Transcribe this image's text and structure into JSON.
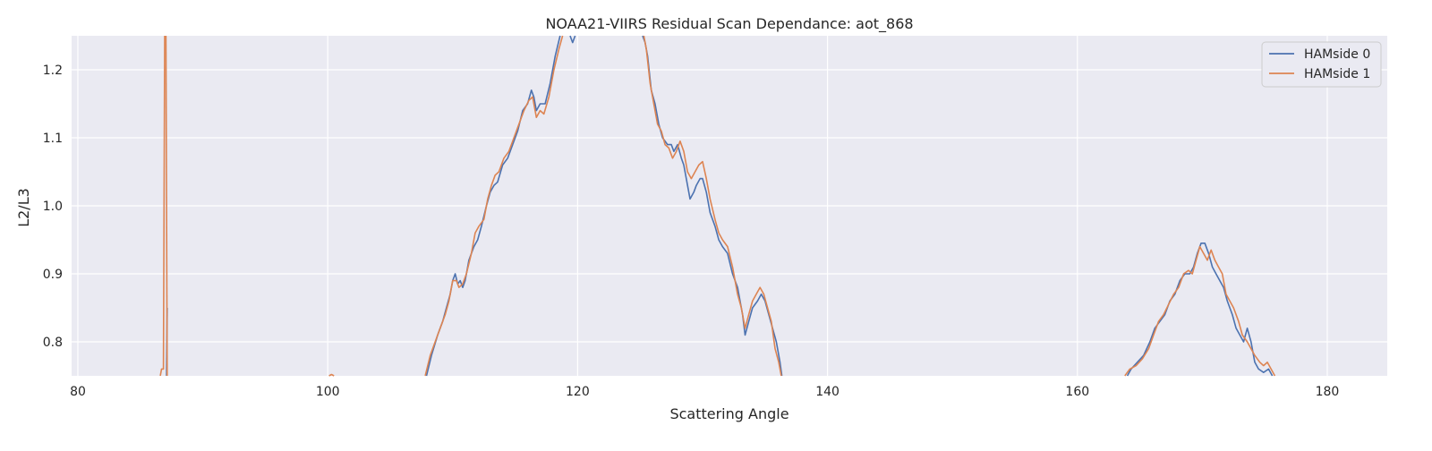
{
  "chart_data": {
    "type": "line",
    "title": "NOAA21-VIIRS Residual Scan Dependance: aot_868",
    "xlabel": "Scattering Angle",
    "ylabel": "L2/L3",
    "xlim": [
      79.5,
      184.8
    ],
    "ylim": [
      0.75,
      1.25
    ],
    "xticks": [
      80,
      100,
      120,
      140,
      160,
      180
    ],
    "yticks": [
      0.8,
      0.9,
      1.0,
      1.1,
      1.2
    ],
    "grid": true,
    "legend_position": "top-right",
    "colors": {
      "background": "#eaeaf2",
      "grid": "#ffffff"
    },
    "series": [
      {
        "name": "HAMside 0",
        "color": "#4c72b0",
        "segments": [
          [
            [
              87.1,
              0.75
            ],
            [
              87.15,
              0.85
            ]
          ],
          [
            [
              107.9,
              0.75
            ],
            [
              108.3,
              0.78
            ],
            [
              108.8,
              0.81
            ],
            [
              109.2,
              0.83
            ],
            [
              109.5,
              0.85
            ],
            [
              109.8,
              0.87
            ],
            [
              110.0,
              0.89
            ],
            [
              110.2,
              0.9
            ],
            [
              110.4,
              0.885
            ],
            [
              110.6,
              0.89
            ],
            [
              110.8,
              0.88
            ],
            [
              111.0,
              0.89
            ],
            [
              111.3,
              0.92
            ],
            [
              111.7,
              0.94
            ],
            [
              112.0,
              0.95
            ],
            [
              112.3,
              0.97
            ],
            [
              112.7,
              1.0
            ],
            [
              113.0,
              1.02
            ],
            [
              113.3,
              1.03
            ],
            [
              113.6,
              1.035
            ],
            [
              114.0,
              1.06
            ],
            [
              114.4,
              1.07
            ],
            [
              114.8,
              1.09
            ],
            [
              115.2,
              1.11
            ],
            [
              115.6,
              1.14
            ],
            [
              116.0,
              1.15
            ],
            [
              116.3,
              1.17
            ],
            [
              116.5,
              1.16
            ],
            [
              116.7,
              1.14
            ],
            [
              117.0,
              1.15
            ],
            [
              117.4,
              1.15
            ],
            [
              117.8,
              1.18
            ],
            [
              118.2,
              1.22
            ],
            [
              118.6,
              1.25
            ]
          ],
          [
            [
              119.4,
              1.25
            ],
            [
              119.6,
              1.24
            ],
            [
              119.8,
              1.25
            ]
          ],
          [
            [
              125.2,
              1.25
            ],
            [
              125.4,
              1.24
            ],
            [
              125.6,
              1.22
            ],
            [
              125.9,
              1.17
            ],
            [
              126.2,
              1.15
            ],
            [
              126.5,
              1.12
            ],
            [
              126.8,
              1.1
            ],
            [
              127.2,
              1.09
            ],
            [
              127.5,
              1.09
            ],
            [
              127.7,
              1.08
            ],
            [
              128.0,
              1.09
            ],
            [
              128.3,
              1.07
            ],
            [
              128.5,
              1.06
            ],
            [
              128.8,
              1.03
            ],
            [
              129.0,
              1.01
            ],
            [
              129.3,
              1.02
            ],
            [
              129.5,
              1.03
            ],
            [
              129.8,
              1.04
            ],
            [
              130.0,
              1.04
            ],
            [
              130.3,
              1.02
            ],
            [
              130.6,
              0.99
            ],
            [
              131.0,
              0.97
            ],
            [
              131.3,
              0.95
            ],
            [
              131.6,
              0.94
            ],
            [
              132.0,
              0.93
            ],
            [
              132.4,
              0.9
            ],
            [
              132.8,
              0.88
            ],
            [
              133.2,
              0.84
            ],
            [
              133.4,
              0.81
            ],
            [
              133.7,
              0.83
            ],
            [
              134.0,
              0.85
            ],
            [
              134.4,
              0.86
            ],
            [
              134.7,
              0.87
            ],
            [
              135.0,
              0.86
            ],
            [
              135.3,
              0.84
            ],
            [
              135.6,
              0.82
            ],
            [
              135.9,
              0.8
            ],
            [
              136.2,
              0.77
            ],
            [
              136.35,
              0.75
            ]
          ],
          [
            [
              164.0,
              0.75
            ],
            [
              164.3,
              0.76
            ],
            [
              164.8,
              0.77
            ],
            [
              165.3,
              0.78
            ],
            [
              165.8,
              0.8
            ],
            [
              166.2,
              0.82
            ],
            [
              166.6,
              0.83
            ],
            [
              167.0,
              0.84
            ],
            [
              167.4,
              0.86
            ],
            [
              167.8,
              0.87
            ],
            [
              168.2,
              0.89
            ],
            [
              168.6,
              0.9
            ],
            [
              169.0,
              0.9
            ],
            [
              169.3,
              0.91
            ],
            [
              169.6,
              0.93
            ],
            [
              169.9,
              0.945
            ],
            [
              170.2,
              0.945
            ],
            [
              170.5,
              0.93
            ],
            [
              170.8,
              0.91
            ],
            [
              171.1,
              0.9
            ],
            [
              171.4,
              0.89
            ],
            [
              171.7,
              0.88
            ],
            [
              172.0,
              0.86
            ],
            [
              172.4,
              0.84
            ],
            [
              172.7,
              0.82
            ],
            [
              173.0,
              0.81
            ],
            [
              173.3,
              0.8
            ],
            [
              173.6,
              0.82
            ],
            [
              173.9,
              0.8
            ],
            [
              174.2,
              0.77
            ],
            [
              174.5,
              0.76
            ],
            [
              174.9,
              0.755
            ],
            [
              175.3,
              0.76
            ],
            [
              175.6,
              0.75
            ]
          ]
        ]
      },
      {
        "name": "HAMside 1",
        "color": "#dd8452",
        "segments": [
          [
            [
              86.6,
              0.75
            ],
            [
              86.7,
              0.76
            ],
            [
              86.85,
              0.76
            ],
            [
              86.95,
              1.25
            ]
          ],
          [
            [
              87.05,
              1.25
            ],
            [
              87.15,
              0.75
            ]
          ],
          [
            [
              100.1,
              0.75
            ],
            [
              100.3,
              0.752
            ],
            [
              100.5,
              0.75
            ]
          ],
          [
            [
              107.8,
              0.75
            ],
            [
              108.2,
              0.78
            ],
            [
              108.6,
              0.8
            ],
            [
              109.0,
              0.82
            ],
            [
              109.4,
              0.84
            ],
            [
              109.7,
              0.86
            ],
            [
              110.0,
              0.89
            ],
            [
              110.3,
              0.89
            ],
            [
              110.5,
              0.88
            ],
            [
              110.8,
              0.885
            ],
            [
              111.1,
              0.9
            ],
            [
              111.5,
              0.93
            ],
            [
              111.8,
              0.96
            ],
            [
              112.1,
              0.97
            ],
            [
              112.5,
              0.98
            ],
            [
              112.8,
              1.01
            ],
            [
              113.1,
              1.03
            ],
            [
              113.4,
              1.045
            ],
            [
              113.7,
              1.05
            ],
            [
              114.1,
              1.07
            ],
            [
              114.5,
              1.08
            ],
            [
              114.9,
              1.1
            ],
            [
              115.3,
              1.12
            ],
            [
              115.7,
              1.14
            ],
            [
              116.1,
              1.155
            ],
            [
              116.4,
              1.16
            ],
            [
              116.7,
              1.13
            ],
            [
              117.0,
              1.14
            ],
            [
              117.3,
              1.135
            ],
            [
              117.7,
              1.16
            ],
            [
              118.1,
              1.2
            ],
            [
              118.5,
              1.23
            ],
            [
              118.8,
              1.25
            ]
          ],
          [
            [
              125.3,
              1.25
            ],
            [
              125.5,
              1.23
            ],
            [
              125.8,
              1.18
            ],
            [
              126.1,
              1.15
            ],
            [
              126.4,
              1.12
            ],
            [
              126.7,
              1.11
            ],
            [
              127.0,
              1.09
            ],
            [
              127.3,
              1.085
            ],
            [
              127.6,
              1.07
            ],
            [
              127.9,
              1.08
            ],
            [
              128.2,
              1.095
            ],
            [
              128.5,
              1.08
            ],
            [
              128.8,
              1.05
            ],
            [
              129.1,
              1.04
            ],
            [
              129.4,
              1.05
            ],
            [
              129.7,
              1.06
            ],
            [
              130.0,
              1.065
            ],
            [
              130.3,
              1.04
            ],
            [
              130.6,
              1.01
            ],
            [
              131.0,
              0.98
            ],
            [
              131.3,
              0.96
            ],
            [
              131.6,
              0.95
            ],
            [
              132.0,
              0.94
            ],
            [
              132.4,
              0.91
            ],
            [
              132.8,
              0.87
            ],
            [
              133.1,
              0.85
            ],
            [
              133.4,
              0.82
            ],
            [
              133.7,
              0.84
            ],
            [
              134.0,
              0.86
            ],
            [
              134.3,
              0.87
            ],
            [
              134.6,
              0.88
            ],
            [
              134.9,
              0.87
            ],
            [
              135.2,
              0.85
            ],
            [
              135.5,
              0.83
            ],
            [
              135.8,
              0.79
            ],
            [
              136.1,
              0.77
            ],
            [
              136.3,
              0.75
            ]
          ],
          [
            [
              163.8,
              0.75
            ],
            [
              164.2,
              0.76
            ],
            [
              164.7,
              0.765
            ],
            [
              165.2,
              0.775
            ],
            [
              165.7,
              0.79
            ],
            [
              166.1,
              0.81
            ],
            [
              166.5,
              0.83
            ],
            [
              166.9,
              0.84
            ],
            [
              167.3,
              0.855
            ],
            [
              167.7,
              0.87
            ],
            [
              168.1,
              0.88
            ],
            [
              168.5,
              0.9
            ],
            [
              168.9,
              0.905
            ],
            [
              169.2,
              0.9
            ],
            [
              169.5,
              0.92
            ],
            [
              169.8,
              0.94
            ],
            [
              170.1,
              0.93
            ],
            [
              170.4,
              0.92
            ],
            [
              170.7,
              0.935
            ],
            [
              171.0,
              0.92
            ],
            [
              171.3,
              0.91
            ],
            [
              171.6,
              0.9
            ],
            [
              171.9,
              0.87
            ],
            [
              172.2,
              0.86
            ],
            [
              172.5,
              0.85
            ],
            [
              172.9,
              0.83
            ],
            [
              173.2,
              0.81
            ],
            [
              173.6,
              0.8
            ],
            [
              173.9,
              0.79
            ],
            [
              174.2,
              0.78
            ],
            [
              174.6,
              0.77
            ],
            [
              174.9,
              0.765
            ],
            [
              175.2,
              0.77
            ],
            [
              175.5,
              0.76
            ],
            [
              175.8,
              0.75
            ]
          ]
        ]
      }
    ]
  }
}
